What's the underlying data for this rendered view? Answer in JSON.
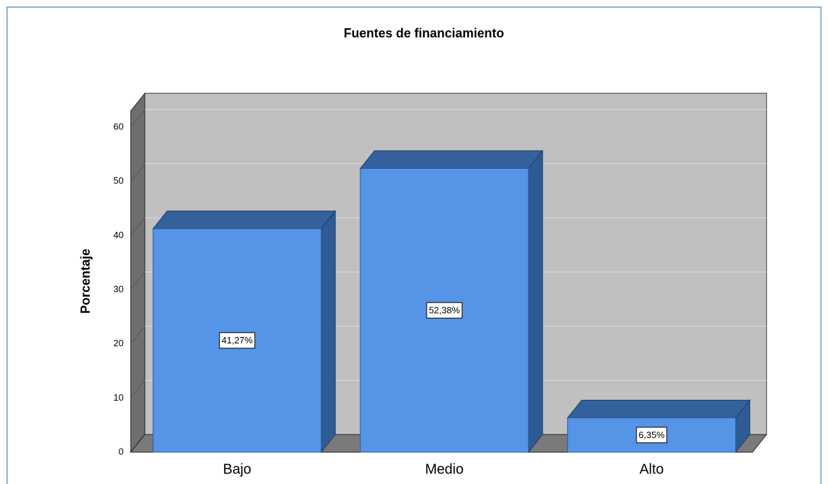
{
  "chart_data": {
    "type": "bar3d",
    "title": "Fuentes de financiamiento",
    "y_label": "Porcentaje",
    "categories": [
      "Bajo",
      "Medio",
      "Alto"
    ],
    "values": [
      41.27,
      52.38,
      6.35
    ],
    "value_labels": [
      "41,27%",
      "52,38%",
      "6,35%"
    ],
    "color": "#5594e6",
    "ylim": [
      0,
      63
    ],
    "yticks": [
      0,
      10,
      20,
      30,
      40,
      50,
      60
    ],
    "grid": true
  }
}
